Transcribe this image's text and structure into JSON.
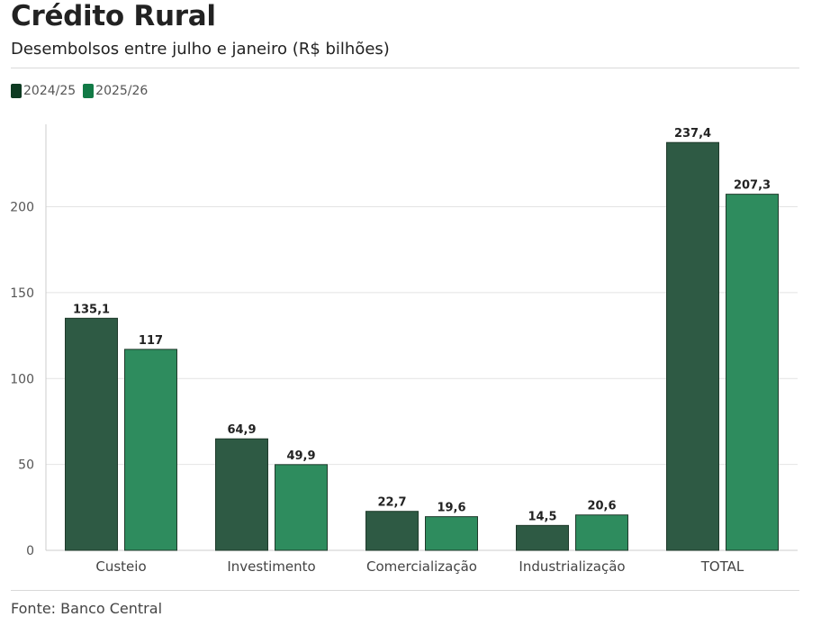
{
  "header": {
    "title": "Crédito Rural",
    "subtitle": "Desembolsos entre julho e janeiro (R$ bilhões)"
  },
  "colors": {
    "series_2024": "#2e5a44",
    "series_2025": "#2e8c5e",
    "legend_2024": "#0e3b22",
    "legend_2025": "#127a46"
  },
  "footer": {
    "source": "Fonte: Banco Central"
  },
  "chart_data": {
    "type": "bar",
    "title": "Crédito Rural",
    "subtitle": "Desembolsos entre julho e janeiro (R$ bilhões)",
    "xlabel": "",
    "ylabel": "",
    "categories": [
      "Custeio",
      "Investimento",
      "Comercialização",
      "Industrialização",
      "TOTAL"
    ],
    "series": [
      {
        "name": "2024/25",
        "values": [
          135.1,
          64.9,
          22.7,
          14.5,
          237.4
        ],
        "labels": [
          "135,1",
          "64,9",
          "22,7",
          "14,5",
          "237,4"
        ]
      },
      {
        "name": "2025/26",
        "values": [
          117,
          49.9,
          19.6,
          20.6,
          207.3
        ],
        "labels": [
          "117",
          "49,9",
          "19,6",
          "20,6",
          "207,3"
        ]
      }
    ],
    "yticks": [
      0,
      50,
      100,
      150,
      200
    ],
    "ylim": [
      0,
      248
    ],
    "grid": true,
    "legend": "top-left"
  }
}
